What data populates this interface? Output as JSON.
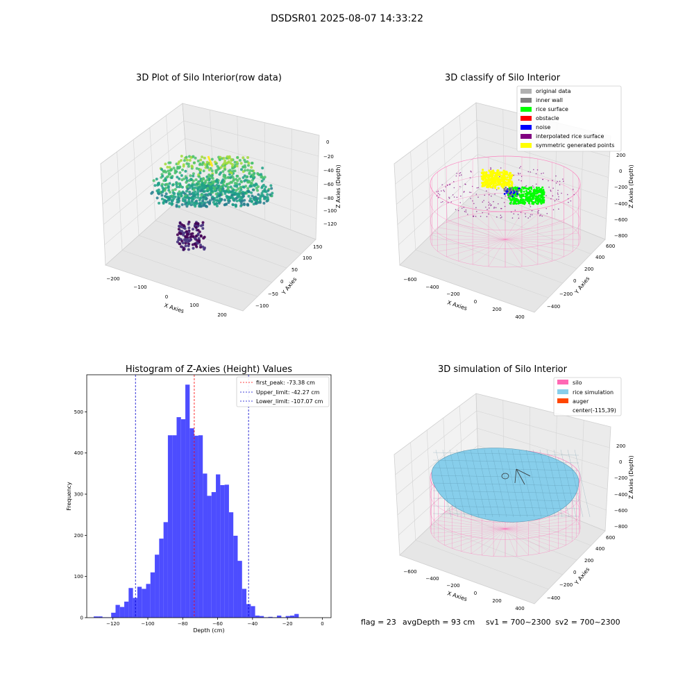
{
  "suptitle": "DSDSR01 2025-08-07 14:33:22",
  "footer": {
    "flag": "flag = 23",
    "avg_depth": "avgDepth = 93 cm",
    "sv1": "sv1 = 700~2300",
    "sv2": "sv2 = 700~2300"
  },
  "colors": {
    "histogram_bar": "#4d4dff",
    "peak_line": "#ff0000",
    "limit_line": "#0000cc",
    "pane": "#f2f2f2",
    "silo_wire": "#ff69b4",
    "rice_sim": "#87ceeb",
    "auger": "#ff4500"
  },
  "chart_data": [
    {
      "type": "scatter",
      "projection": "3d",
      "title": "3D Plot of Silo Interior(row data)",
      "xlabel": "X Axies",
      "ylabel": "Y Axies",
      "zlabel": "Z Axies (Depth)",
      "x_ticks": [
        "−200",
        "−100",
        "0",
        "100",
        "200"
      ],
      "y_ticks": [
        "−100",
        "−50",
        "0",
        "50",
        "100",
        "150"
      ],
      "z_ticks": [
        "0",
        "−20",
        "−40",
        "−60",
        "−80",
        "−100",
        "−120"
      ],
      "xlim": [
        -230,
        230
      ],
      "ylim": [
        -130,
        160
      ],
      "zlim": [
        -135,
        5
      ],
      "colormap": "viridis (by depth)"
    },
    {
      "type": "scatter",
      "projection": "3d",
      "title": "3D classify of Silo Interior",
      "xlabel": "X Axies",
      "ylabel": "Y Axies",
      "zlabel": "Z Axies (Depth)",
      "x_ticks": [
        "−600",
        "−400",
        "−200",
        "0",
        "200",
        "400"
      ],
      "y_ticks": [
        "−400",
        "−200",
        "0",
        "200",
        "400",
        "600"
      ],
      "z_ticks": [
        "200",
        "0",
        "−200",
        "−400",
        "−600",
        "−800"
      ],
      "legend": {
        "placement": "top-right",
        "entries": [
          {
            "label": "original data",
            "color": "#b0b0b0"
          },
          {
            "label": "inner wall",
            "color": "#808080"
          },
          {
            "label": "rice surface",
            "color": "#00ff00"
          },
          {
            "label": "obstacle",
            "color": "#ff0000"
          },
          {
            "label": "noise",
            "color": "#0000ff"
          },
          {
            "label": "interpolated rice surface",
            "color": "#800080"
          },
          {
            "label": "symmetric generated points",
            "color": "#ffff00"
          }
        ]
      }
    },
    {
      "type": "bar",
      "title": "Histogram of Z-Axies (Height) Values",
      "xlabel": "Depth (cm)",
      "ylabel": "Frequency",
      "xlim": [
        -135,
        5
      ],
      "ylim": [
        0,
        590
      ],
      "x_ticks": [
        -120,
        -100,
        -80,
        -60,
        -40,
        -20,
        0
      ],
      "y_ticks": [
        0,
        100,
        200,
        300,
        400,
        500
      ],
      "bins": {
        "start": -131,
        "width": 2.5,
        "values": [
          3,
          3,
          1,
          1,
          12,
          31,
          26,
          39,
          72,
          48,
          75,
          70,
          82,
          110,
          153,
          192,
          232,
          443,
          443,
          487,
          482,
          566,
          460,
          442,
          443,
          350,
          296,
          305,
          348,
          322,
          323,
          256,
          199,
          138,
          70,
          33,
          28,
          5,
          4,
          1,
          2,
          1,
          5,
          1,
          4,
          5,
          9
        ]
      },
      "vlines": [
        {
          "label": "first_peak: -73.38 cm",
          "x": -73.38,
          "kind": "peak"
        },
        {
          "label": "Upper_limit: -42.27 cm",
          "x": -42.27,
          "kind": "limit"
        },
        {
          "label": "Lower_limit: -107.07 cm",
          "x": -107.07,
          "kind": "limit"
        }
      ],
      "legend": {
        "placement": "top-right"
      }
    },
    {
      "type": "surface",
      "projection": "3d",
      "title": "3D simulation of Silo Interior",
      "xlabel": "X Axies",
      "ylabel": "Y Axies",
      "zlabel": "Z Axies (Depth)",
      "x_ticks": [
        "−600",
        "−400",
        "−200",
        "0",
        "200",
        "400"
      ],
      "y_ticks": [
        "−400",
        "−200",
        "0",
        "200",
        "400",
        "600"
      ],
      "z_ticks": [
        "200",
        "0",
        "−200",
        "−400",
        "−600",
        "−800"
      ],
      "legend": {
        "placement": "top-right",
        "entries": [
          {
            "label": "silo",
            "color": "#ff69b4"
          },
          {
            "label": "rice simulation",
            "color": "#87ceeb"
          },
          {
            "label": "auger",
            "color": "#ff4500"
          },
          {
            "label": "center(-115,39)",
            "color": ""
          }
        ]
      }
    }
  ]
}
